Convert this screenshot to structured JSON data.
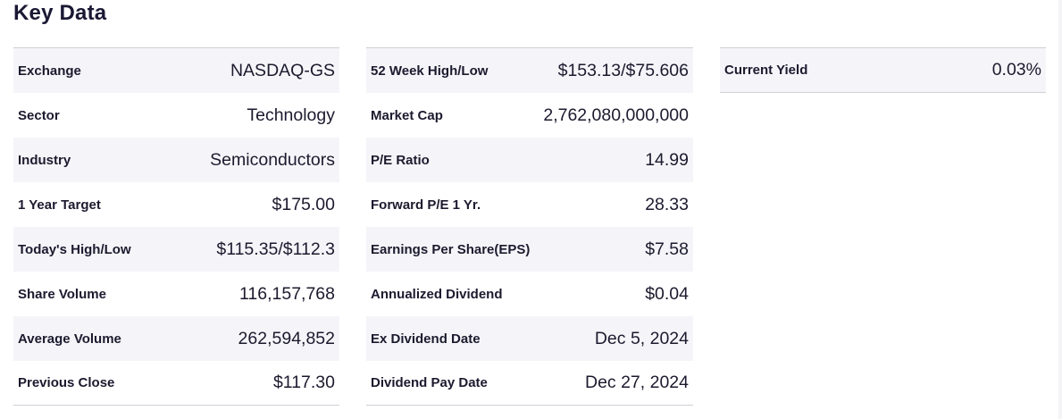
{
  "title": "Key Data",
  "columns": [
    {
      "rows": [
        {
          "label": "Exchange",
          "value": "NASDAQ-GS"
        },
        {
          "label": "Sector",
          "value": "Technology"
        },
        {
          "label": "Industry",
          "value": "Semiconductors"
        },
        {
          "label": "1 Year Target",
          "value": "$175.00"
        },
        {
          "label": "Today's High/Low",
          "value": "$115.35/$112.3"
        },
        {
          "label": "Share Volume",
          "value": "116,157,768"
        },
        {
          "label": "Average Volume",
          "value": "262,594,852"
        },
        {
          "label": "Previous Close",
          "value": "$117.30"
        }
      ]
    },
    {
      "rows": [
        {
          "label": "52 Week High/Low",
          "value": "$153.13/$75.606"
        },
        {
          "label": "Market Cap",
          "value": "2,762,080,000,000"
        },
        {
          "label": "P/E Ratio",
          "value": "14.99"
        },
        {
          "label": "Forward P/E 1 Yr.",
          "value": "28.33"
        },
        {
          "label": "Earnings Per Share(EPS)",
          "value": "$7.58"
        },
        {
          "label": "Annualized Dividend",
          "value": "$0.04"
        },
        {
          "label": "Ex Dividend Date",
          "value": "Dec 5, 2024"
        },
        {
          "label": "Dividend Pay Date",
          "value": "Dec 27, 2024"
        }
      ]
    },
    {
      "rows": [
        {
          "label": "Current Yield",
          "value": "0.03%"
        }
      ]
    }
  ],
  "colors": {
    "shaded_row": "#f5f5f9",
    "border": "#cfcfd6",
    "text": "#1c1a2e"
  }
}
